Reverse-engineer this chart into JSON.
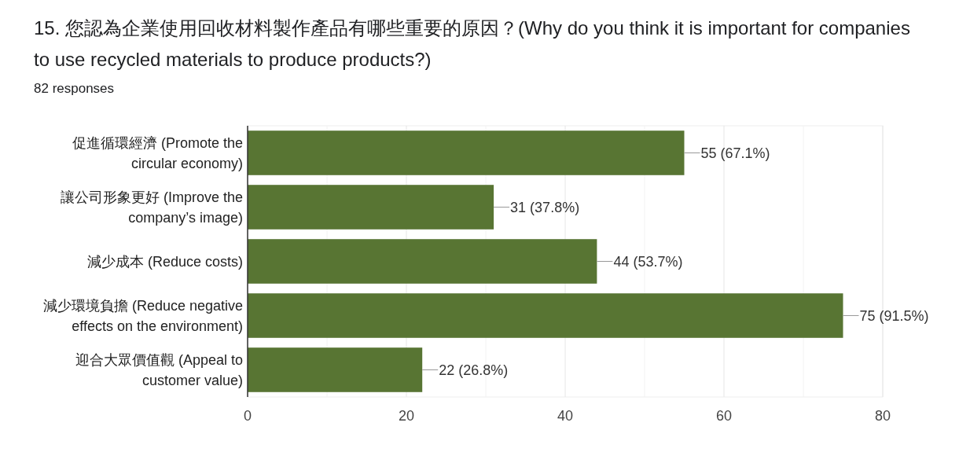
{
  "chart_data": {
    "type": "bar",
    "orientation": "horizontal",
    "title": "15. 您認為企業使用回收材料製作產品有哪些重要的原因？(Why do you think it is important for companies to use recycled materials to produce products?)",
    "subtitle": "82 responses",
    "categories": [
      "促進循環經濟 (Promote the circular economy)",
      "讓公司形象更好 (Improve the company’s image)",
      "減少成本 (Reduce costs)",
      "減少環境負擔 (Reduce negative effects on the environment)",
      "迎合大眾價值觀 (Appeal to customer value)"
    ],
    "values": [
      55,
      31,
      44,
      75,
      22
    ],
    "value_labels": [
      "55 (67.1%)",
      "31 (37.8%)",
      "44 (53.7%)",
      "75 (91.5%)",
      "22 (26.8%)"
    ],
    "color": "#587533",
    "xlim": [
      0,
      80
    ],
    "xticks": [
      0,
      {
        "value": 10,
        "label": null
      },
      20,
      {
        "value": 30,
        "label": null
      },
      40,
      {
        "value": 50,
        "label": null
      },
      60,
      {
        "value": 70,
        "label": null
      },
      80
    ],
    "grid": "x"
  }
}
